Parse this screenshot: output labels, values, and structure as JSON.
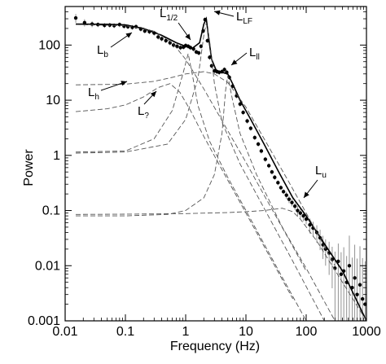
{
  "chart_data": {
    "type": "scatter",
    "title": "",
    "xlabel": "Frequency (Hz)",
    "ylabel": "Power",
    "xscale": "log",
    "yscale": "log",
    "xlim": [
      0.01,
      1000
    ],
    "ylim": [
      0.001,
      500
    ],
    "x_ticks": [
      "0.01",
      "0.1",
      "1",
      "10",
      "100",
      "1000"
    ],
    "y_ticks": [
      "0.001",
      "0.01",
      "0.1",
      "1",
      "10",
      "100"
    ],
    "grid": false,
    "series": [
      {
        "kind": "data_points_with_errors",
        "x": [
          0.015,
          0.021,
          0.028,
          0.035,
          0.045,
          0.055,
          0.065,
          0.08,
          0.095,
          0.11,
          0.13,
          0.15,
          0.18,
          0.21,
          0.25,
          0.3,
          0.35,
          0.4,
          0.47,
          0.55,
          0.63,
          0.72,
          0.82,
          0.92,
          1.0,
          1.1,
          1.2,
          1.35,
          1.5,
          1.65,
          1.8,
          1.95,
          2.1,
          2.3,
          2.5,
          2.7,
          3.0,
          3.3,
          3.6,
          4.0,
          4.4,
          4.8,
          5.3,
          6.0,
          7.0,
          8.0,
          9.0,
          10.5,
          12,
          14,
          16,
          18,
          21,
          24,
          27,
          30,
          34,
          38,
          42,
          47,
          52,
          58,
          65,
          72,
          80,
          90,
          100,
          115,
          130,
          150,
          170,
          190,
          210,
          240,
          270,
          300,
          340,
          380,
          420,
          470,
          520,
          580,
          640,
          700,
          780,
          860,
          950
        ],
        "y": [
          310,
          255,
          240,
          235,
          228,
          230,
          225,
          235,
          220,
          215,
          210,
          215,
          195,
          180,
          175,
          165,
          140,
          130,
          120,
          110,
          100,
          95,
          90,
          92,
          98,
          95,
          90,
          85,
          75,
          72,
          95,
          180,
          290,
          120,
          60,
          42,
          34,
          33,
          32,
          33,
          36,
          32,
          26,
          18,
          12,
          8.5,
          6,
          4.2,
          3.1,
          2.1,
          1.6,
          1.2,
          0.85,
          0.65,
          0.5,
          0.4,
          0.32,
          0.26,
          0.22,
          0.19,
          0.16,
          0.14,
          0.12,
          0.1,
          0.09,
          0.08,
          0.07,
          0.055,
          0.048,
          0.04,
          0.032,
          0.024,
          0.02,
          0.017,
          0.013,
          0.009,
          0.012,
          0.007,
          0.008,
          0.005,
          0.01,
          0.004,
          0.006,
          0.003,
          0.0045,
          0.0025,
          0.002
        ],
        "yerr_frac": [
          0.18,
          0.15,
          0.12,
          0.1,
          0.1,
          0.1,
          0.1,
          0.1,
          0.1,
          0.1,
          0.1,
          0.1,
          0.1,
          0.1,
          0.1,
          0.1,
          0.1,
          0.1,
          0.1,
          0.1,
          0.1,
          0.1,
          0.1,
          0.1,
          0.1,
          0.1,
          0.1,
          0.1,
          0.1,
          0.1,
          0.1,
          0.1,
          0.1,
          0.1,
          0.1,
          0.1,
          0.1,
          0.1,
          0.1,
          0.1,
          0.1,
          0.1,
          0.1,
          0.1,
          0.1,
          0.1,
          0.1,
          0.1,
          0.1,
          0.1,
          0.1,
          0.1,
          0.1,
          0.1,
          0.1,
          0.1,
          0.1,
          0.1,
          0.1,
          0.15,
          0.15,
          0.15,
          0.15,
          0.2,
          0.2,
          0.2,
          0.2,
          0.3,
          0.3,
          0.35,
          0.4,
          0.45,
          0.5,
          0.6,
          0.7,
          1.0,
          1.1,
          1.5,
          1.7,
          2.0,
          2.5,
          2.5,
          3.0,
          3.5,
          4.0,
          4.5,
          5.0
        ]
      },
      {
        "kind": "total_model",
        "x": [
          0.015,
          0.05,
          0.1,
          0.2,
          0.4,
          0.7,
          1.0,
          1.3,
          1.7,
          2.0,
          2.2,
          2.4,
          2.7,
          3.2,
          4.0,
          5.0,
          6.0,
          8.0,
          12,
          20,
          35,
          60,
          100,
          200,
          400,
          1000
        ],
        "y": [
          240,
          238,
          232,
          200,
          150,
          110,
          95,
          88,
          110,
          240,
          300,
          140,
          55,
          35,
          32,
          30,
          20,
          10,
          4.5,
          1.6,
          0.5,
          0.17,
          0.08,
          0.025,
          0.008,
          0.001
        ]
      },
      {
        "kind": "component",
        "label": "L_b",
        "x": [
          0.015,
          0.1,
          0.3,
          0.6,
          1.0,
          2.0,
          5.0,
          10,
          20,
          50,
          100
        ],
        "y": [
          235,
          225,
          180,
          110,
          55,
          16,
          2.8,
          0.75,
          0.19,
          0.032,
          0.008
        ]
      },
      {
        "kind": "component",
        "label": "L_h",
        "x": [
          0.015,
          0.1,
          0.3,
          0.6,
          1.0,
          2.0,
          3.0,
          5.0,
          10,
          20,
          50,
          100,
          300
        ],
        "y": [
          19,
          19.5,
          22,
          26,
          30,
          33,
          30,
          21,
          7.5,
          2.0,
          0.35,
          0.09,
          0.01
        ]
      },
      {
        "kind": "component",
        "label": "L_?",
        "x": [
          0.015,
          0.05,
          0.1,
          0.2,
          0.35,
          0.55,
          0.8,
          1.2,
          2.0,
          4.0,
          10,
          30,
          60
        ],
        "y": [
          6.2,
          7.0,
          8.2,
          11.5,
          17,
          20,
          14,
          6.5,
          2.2,
          0.55,
          0.09,
          0.01,
          0.0025
        ]
      },
      {
        "kind": "component",
        "label": "L_1/2",
        "x": [
          0.015,
          0.1,
          0.3,
          0.6,
          0.9,
          1.1,
          1.3,
          1.6,
          2.5,
          5.0,
          10,
          30,
          100
        ],
        "y": [
          1.15,
          1.2,
          2.0,
          6.5,
          30,
          70,
          28,
          8,
          1.8,
          0.4,
          0.1,
          0.011,
          0.001
        ]
      },
      {
        "kind": "component",
        "label": "L_LF",
        "x": [
          0.015,
          0.1,
          0.5,
          1.0,
          1.6,
          2.0,
          2.2,
          2.5,
          3.0,
          4.0,
          8.0,
          20,
          60,
          200
        ],
        "y": [
          1.1,
          1.15,
          1.6,
          4.5,
          25,
          150,
          250,
          120,
          20,
          4.0,
          0.7,
          0.11,
          0.012,
          0.001
        ]
      },
      {
        "kind": "component",
        "label": "L_u",
        "x": [
          0.015,
          0.1,
          1.0,
          5.0,
          10,
          20,
          40,
          60,
          80,
          150,
          400,
          1000
        ],
        "y": [
          0.085,
          0.086,
          0.088,
          0.092,
          0.095,
          0.1,
          0.11,
          0.095,
          0.07,
          0.028,
          0.005,
          0.001
        ]
      },
      {
        "kind": "component",
        "label": "L_ll",
        "x": [
          0.015,
          0.1,
          0.5,
          1.0,
          2.0,
          3.0,
          4.0,
          4.6,
          5.0,
          6.0,
          8.0,
          15,
          40,
          100,
          300
        ],
        "y": [
          0.08,
          0.08,
          0.085,
          0.1,
          0.17,
          0.45,
          2.5,
          15,
          28,
          10,
          2.5,
          0.45,
          0.05,
          0.009,
          0.001
        ]
      }
    ],
    "annotations": [
      {
        "label": "L",
        "sub": "b"
      },
      {
        "label": "L",
        "sub": "1/2"
      },
      {
        "label": "L",
        "sub": "LF"
      },
      {
        "label": "L",
        "sub": "ll"
      },
      {
        "label": "L",
        "sub": "h"
      },
      {
        "label": "L",
        "sub": "?"
      },
      {
        "label": "L",
        "sub": "u"
      }
    ]
  }
}
